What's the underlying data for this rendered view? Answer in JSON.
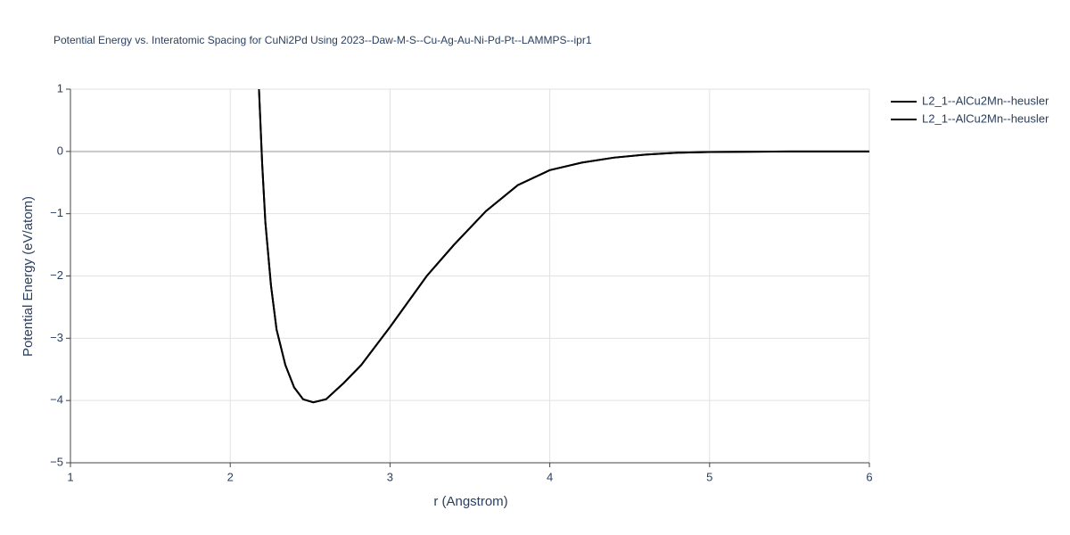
{
  "chart_data": {
    "type": "line",
    "title": "Potential Energy vs. Interatomic Spacing for CuNi2Pd Using 2023--Daw-M-S--Cu-Ag-Au-Ni-Pd-Pt--LAMMPS--ipr1",
    "x_label": "r (Angstrom)",
    "y_label": "Potential Energy (eV/atom)",
    "x": [
      2.18,
      2.2,
      2.22,
      2.255,
      2.29,
      2.345,
      2.4,
      2.456,
      2.52,
      2.6,
      2.71,
      2.82,
      3.0,
      3.23,
      3.4,
      3.6,
      3.8,
      4.0,
      4.2,
      4.4,
      4.6,
      4.8,
      5.0,
      5.5,
      6.0
    ],
    "series": [
      {
        "name": "L2_1--AlCu2Mn--heusler",
        "color": "#000000",
        "values": [
          1.0,
          -0.2,
          -1.14,
          -2.15,
          -2.86,
          -3.43,
          -3.79,
          -3.98,
          -4.03,
          -3.98,
          -3.72,
          -3.43,
          -2.82,
          -2.0,
          -1.5,
          -0.96,
          -0.54,
          -0.3,
          -0.18,
          -0.1,
          -0.05,
          -0.02,
          -0.01,
          0,
          0
        ]
      },
      {
        "name": "L2_1--AlCu2Mn--heusler",
        "color": "#000000",
        "values": [
          1.0,
          -0.2,
          -1.14,
          -2.15,
          -2.86,
          -3.43,
          -3.79,
          -3.98,
          -4.03,
          -3.98,
          -3.72,
          -3.43,
          -2.82,
          -2.0,
          -1.5,
          -0.96,
          -0.54,
          -0.3,
          -0.18,
          -0.1,
          -0.05,
          -0.02,
          -0.01,
          0,
          0
        ]
      }
    ],
    "xlim": [
      1,
      6
    ],
    "xticks": [
      1,
      2,
      3,
      4,
      5,
      6
    ],
    "ylim": [
      -5,
      1
    ],
    "yticks": [
      {
        "value": -5,
        "label": "−5"
      },
      {
        "value": -4,
        "label": "−4"
      },
      {
        "value": -3,
        "label": "−3"
      },
      {
        "value": -2,
        "label": "−2"
      },
      {
        "value": -1,
        "label": "−1"
      },
      0,
      1
    ],
    "grid": true,
    "legend": "top-right"
  }
}
